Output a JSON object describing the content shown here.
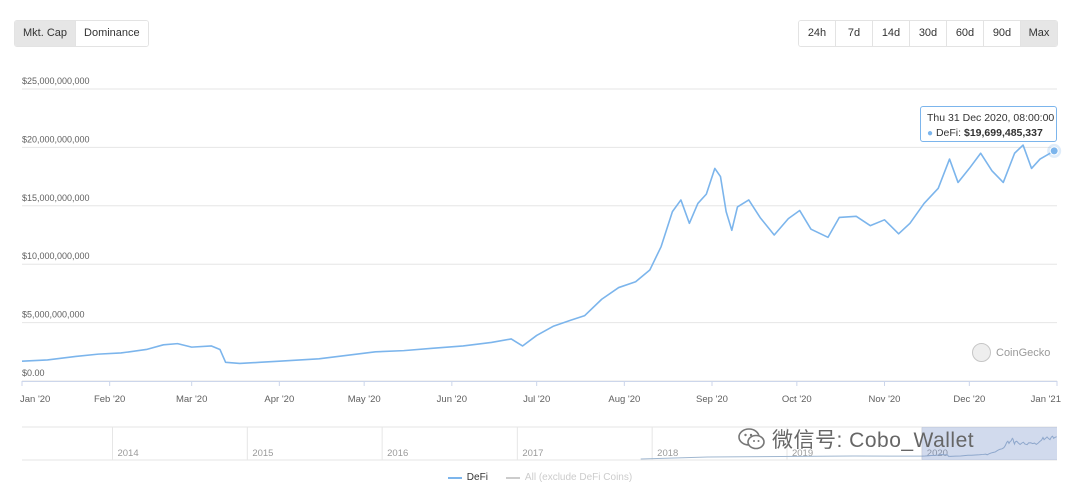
{
  "toolbar": {
    "metric_tabs": [
      {
        "label": "Mkt. Cap",
        "active": true
      },
      {
        "label": "Dominance",
        "active": false
      }
    ],
    "range_tabs": [
      {
        "label": "24h",
        "active": false
      },
      {
        "label": "7d",
        "active": false
      },
      {
        "label": "14d",
        "active": false
      },
      {
        "label": "30d",
        "active": false
      },
      {
        "label": "60d",
        "active": false
      },
      {
        "label": "90d",
        "active": false
      },
      {
        "label": "Max",
        "active": true
      }
    ]
  },
  "tooltip": {
    "date": "Thu 31 Dec 2020, 08:00:00",
    "series_label": "DeFi:",
    "value": "$19,699,485,337"
  },
  "watermark": "CoinGecko",
  "wechat_overlay": "微信号: Cobo_Wallet",
  "colors": {
    "series": "#7cb5ec",
    "grid": "#e6e6e6",
    "navigator": "#a0b7d0",
    "legend_inactive": "#cccccc"
  },
  "chart_data": {
    "type": "line",
    "y_ticks": [
      "$0.00",
      "$5,000,000,000",
      "$10,000,000,000",
      "$15,000,000,000",
      "$20,000,000,000",
      "$25,000,000,000"
    ],
    "ylim": [
      0,
      25000000000
    ],
    "x_ticks": [
      "Jan '20",
      "Feb '20",
      "Mar '20",
      "Apr '20",
      "May '20",
      "Jun '20",
      "Jul '20",
      "Aug '20",
      "Sep '20",
      "Oct '20",
      "Nov '20",
      "Dec '20",
      "Jan '21"
    ],
    "navigator_labels": [
      "2014",
      "2015",
      "2016",
      "2017",
      "2018",
      "2019",
      "2020"
    ],
    "legend": [
      {
        "name": "DeFi",
        "active": true
      },
      {
        "name": "All (exclude DeFi Coins)",
        "active": false
      }
    ],
    "series": [
      {
        "name": "DeFi",
        "points": [
          [
            "2020-01-01",
            1700000000.0
          ],
          [
            "2020-01-10",
            1800000000.0
          ],
          [
            "2020-01-20",
            2100000000.0
          ],
          [
            "2020-01-28",
            2300000000.0
          ],
          [
            "2020-02-05",
            2400000000.0
          ],
          [
            "2020-02-14",
            2700000000.0
          ],
          [
            "2020-02-20",
            3100000000.0
          ],
          [
            "2020-02-25",
            3200000000.0
          ],
          [
            "2020-03-01",
            2900000000.0
          ],
          [
            "2020-03-08",
            3000000000.0
          ],
          [
            "2020-03-11",
            2700000000.0
          ],
          [
            "2020-03-13",
            1600000000.0
          ],
          [
            "2020-03-18",
            1500000000.0
          ],
          [
            "2020-03-25",
            1600000000.0
          ],
          [
            "2020-04-01",
            1700000000.0
          ],
          [
            "2020-04-15",
            1900000000.0
          ],
          [
            "2020-04-25",
            2200000000.0
          ],
          [
            "2020-05-05",
            2500000000.0
          ],
          [
            "2020-05-15",
            2600000000.0
          ],
          [
            "2020-05-25",
            2800000000.0
          ],
          [
            "2020-06-05",
            3000000000.0
          ],
          [
            "2020-06-15",
            3300000000.0
          ],
          [
            "2020-06-22",
            3600000000.0
          ],
          [
            "2020-06-26",
            3000000000.0
          ],
          [
            "2020-07-01",
            3900000000.0
          ],
          [
            "2020-07-07",
            4700000000.0
          ],
          [
            "2020-07-13",
            5200000000.0
          ],
          [
            "2020-07-18",
            5600000000.0
          ],
          [
            "2020-07-24",
            7000000000.0
          ],
          [
            "2020-07-30",
            8000000000.0
          ],
          [
            "2020-08-05",
            8500000000.0
          ],
          [
            "2020-08-10",
            9500000000.0
          ],
          [
            "2020-08-14",
            11500000000.0
          ],
          [
            "2020-08-18",
            14500000000.0
          ],
          [
            "2020-08-21",
            15500000000.0
          ],
          [
            "2020-08-24",
            13500000000.0
          ],
          [
            "2020-08-27",
            15200000000.0
          ],
          [
            "2020-08-30",
            16000000000.0
          ],
          [
            "2020-09-02",
            18200000000.0
          ],
          [
            "2020-09-04",
            17500000000.0
          ],
          [
            "2020-09-06",
            14500000000.0
          ],
          [
            "2020-09-08",
            12900000000.0
          ],
          [
            "2020-09-10",
            14900000000.0
          ],
          [
            "2020-09-14",
            15500000000.0
          ],
          [
            "2020-09-18",
            14000000000.0
          ],
          [
            "2020-09-23",
            12500000000.0
          ],
          [
            "2020-09-28",
            13900000000.0
          ],
          [
            "2020-10-02",
            14600000000.0
          ],
          [
            "2020-10-06",
            13000000000.0
          ],
          [
            "2020-10-12",
            12300000000.0
          ],
          [
            "2020-10-16",
            14000000000.0
          ],
          [
            "2020-10-22",
            14100000000.0
          ],
          [
            "2020-10-27",
            13300000000.0
          ],
          [
            "2020-11-01",
            13800000000.0
          ],
          [
            "2020-11-06",
            12600000000.0
          ],
          [
            "2020-11-10",
            13500000000.0
          ],
          [
            "2020-11-15",
            15200000000.0
          ],
          [
            "2020-11-20",
            16500000000.0
          ],
          [
            "2020-11-24",
            19000000000.0
          ],
          [
            "2020-11-27",
            17000000000.0
          ],
          [
            "2020-12-01",
            18200000000.0
          ],
          [
            "2020-12-05",
            19500000000.0
          ],
          [
            "2020-12-09",
            18000000000.0
          ],
          [
            "2020-12-13",
            17000000000.0
          ],
          [
            "2020-12-17",
            19500000000.0
          ],
          [
            "2020-12-20",
            20200000000.0
          ],
          [
            "2020-12-23",
            18200000000.0
          ],
          [
            "2020-12-26",
            19000000000.0
          ],
          [
            "2020-12-31",
            19699485337.0
          ]
        ]
      }
    ]
  }
}
